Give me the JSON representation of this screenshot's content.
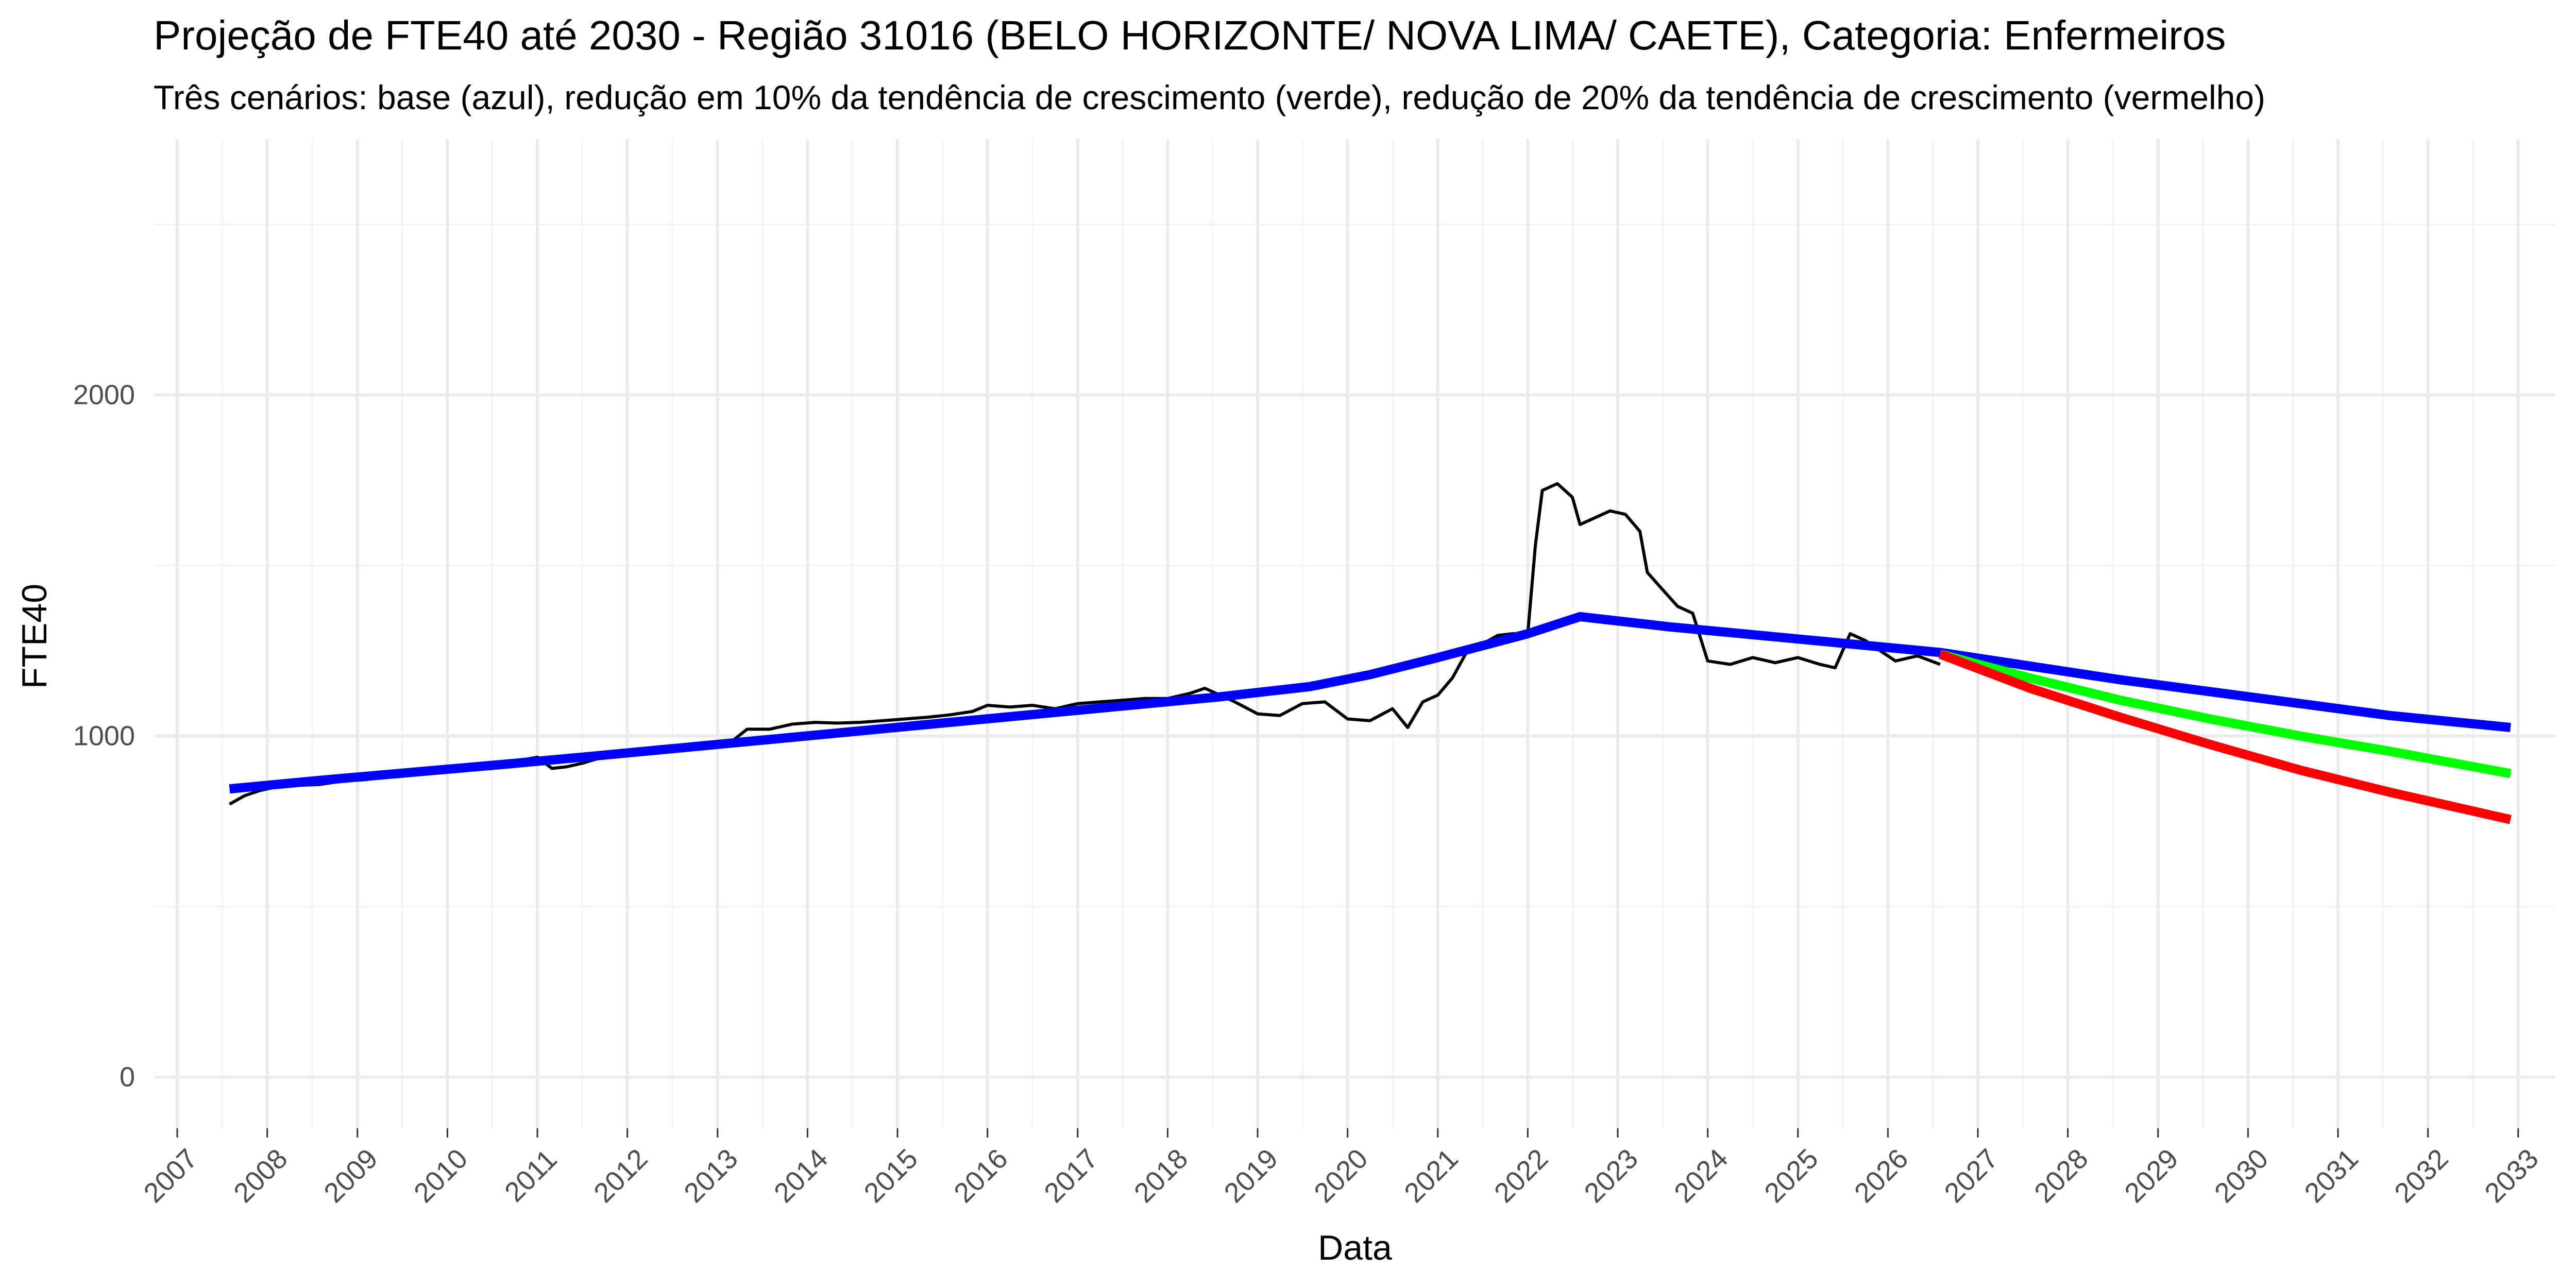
{
  "chart_data": {
    "type": "line",
    "title": "Projeção de FTE40 até 2030 - Região 31016 (BELO HORIZONTE/ NOVA LIMA/ CAETE), Categoria: Enfermeiros",
    "subtitle": "Três cenários: base (azul), redução em 10% da tendência de crescimento (verde), redução de 20% da tendência de crescimento (vermelho)",
    "xlabel": "Data",
    "ylabel": "FTE40",
    "x_type": "date",
    "xlim": [
      "2006-10-01",
      "2033-06-01"
    ],
    "ylim": [
      -150,
      2750
    ],
    "x_ticks": [
      "2007-01-01",
      "2008-01-01",
      "2009-01-01",
      "2010-01-01",
      "2011-01-01",
      "2012-01-01",
      "2013-01-01",
      "2014-01-01",
      "2015-01-01",
      "2016-01-01",
      "2017-01-01",
      "2018-01-01",
      "2019-01-01",
      "2020-01-01",
      "2021-01-01",
      "2022-01-01",
      "2023-01-01",
      "2024-01-01",
      "2025-01-01",
      "2026-01-01",
      "2027-01-01",
      "2028-01-01",
      "2029-01-01",
      "2030-01-01",
      "2031-01-01",
      "2032-01-01",
      "2033-01-01"
    ],
    "x_tick_labels": [
      "2007",
      "2008",
      "2009",
      "2010",
      "2011",
      "2012",
      "2013",
      "2014",
      "2015",
      "2016",
      "2017",
      "2018",
      "2019",
      "2020",
      "2021",
      "2022",
      "2023",
      "2024",
      "2025",
      "2026",
      "2027",
      "2028",
      "2029",
      "2030",
      "2031",
      "2032",
      "2033"
    ],
    "y_ticks": [
      0,
      1000,
      2000
    ],
    "y_tick_labels": [
      "0",
      "1000",
      "2000"
    ],
    "y_minor_ticks": [
      500,
      1500,
      2500
    ],
    "grid": true,
    "legend": "none",
    "series": [
      {
        "color": "#000000",
        "line_width": 6,
        "points": [
          [
            "2007-08-01",
            800
          ],
          [
            "2007-10-01",
            825
          ],
          [
            "2007-12-01",
            840
          ],
          [
            "2008-02-01",
            850
          ],
          [
            "2008-05-01",
            855
          ],
          [
            "2008-08-01",
            858
          ],
          [
            "2008-11-01",
            868
          ],
          [
            "2009-02-01",
            872
          ],
          [
            "2009-05-01",
            882
          ],
          [
            "2009-08-01",
            888
          ],
          [
            "2009-11-01",
            900
          ],
          [
            "2010-02-01",
            912
          ],
          [
            "2010-05-01",
            915
          ],
          [
            "2010-08-01",
            922
          ],
          [
            "2010-11-01",
            930
          ],
          [
            "2011-01-01",
            938
          ],
          [
            "2011-03-01",
            905
          ],
          [
            "2011-05-01",
            910
          ],
          [
            "2011-07-01",
            920
          ],
          [
            "2011-10-01",
            940
          ],
          [
            "2012-01-01",
            950
          ],
          [
            "2012-04-01",
            955
          ],
          [
            "2012-07-01",
            962
          ],
          [
            "2012-10-01",
            970
          ],
          [
            "2013-01-01",
            980
          ],
          [
            "2013-03-01",
            985
          ],
          [
            "2013-05-01",
            1020
          ],
          [
            "2013-08-01",
            1020
          ],
          [
            "2013-11-01",
            1035
          ],
          [
            "2014-02-01",
            1040
          ],
          [
            "2014-05-01",
            1038
          ],
          [
            "2014-08-01",
            1040
          ],
          [
            "2014-11-01",
            1045
          ],
          [
            "2015-02-01",
            1050
          ],
          [
            "2015-05-01",
            1055
          ],
          [
            "2015-08-01",
            1062
          ],
          [
            "2015-11-01",
            1072
          ],
          [
            "2016-01-01",
            1090
          ],
          [
            "2016-04-01",
            1085
          ],
          [
            "2016-07-01",
            1090
          ],
          [
            "2016-10-01",
            1080
          ],
          [
            "2017-01-01",
            1095
          ],
          [
            "2017-04-01",
            1100
          ],
          [
            "2017-07-01",
            1105
          ],
          [
            "2017-10-01",
            1110
          ],
          [
            "2018-01-01",
            1110
          ],
          [
            "2018-04-01",
            1125
          ],
          [
            "2018-06-01",
            1140
          ],
          [
            "2018-08-01",
            1120
          ],
          [
            "2018-10-01",
            1100
          ],
          [
            "2019-01-01",
            1065
          ],
          [
            "2019-04-01",
            1060
          ],
          [
            "2019-07-01",
            1095
          ],
          [
            "2019-10-01",
            1100
          ],
          [
            "2020-01-01",
            1050
          ],
          [
            "2020-04-01",
            1045
          ],
          [
            "2020-07-01",
            1080
          ],
          [
            "2020-09-01",
            1025
          ],
          [
            "2020-11-01",
            1100
          ],
          [
            "2021-01-01",
            1120
          ],
          [
            "2021-03-01",
            1170
          ],
          [
            "2021-05-01",
            1250
          ],
          [
            "2021-07-01",
            1270
          ],
          [
            "2021-09-01",
            1295
          ],
          [
            "2021-11-01",
            1300
          ],
          [
            "2022-01-01",
            1300
          ],
          [
            "2022-02-01",
            1560
          ],
          [
            "2022-03-01",
            1720
          ],
          [
            "2022-05-01",
            1740
          ],
          [
            "2022-07-01",
            1700
          ],
          [
            "2022-08-01",
            1620
          ],
          [
            "2022-10-01",
            1640
          ],
          [
            "2022-12-01",
            1660
          ],
          [
            "2023-02-01",
            1650
          ],
          [
            "2023-04-01",
            1600
          ],
          [
            "2023-05-01",
            1480
          ],
          [
            "2023-07-01",
            1430
          ],
          [
            "2023-09-01",
            1380
          ],
          [
            "2023-11-01",
            1360
          ],
          [
            "2024-01-01",
            1220
          ],
          [
            "2024-04-01",
            1210
          ],
          [
            "2024-07-01",
            1230
          ],
          [
            "2024-10-01",
            1215
          ],
          [
            "2025-01-01",
            1230
          ],
          [
            "2025-04-01",
            1210
          ],
          [
            "2025-06-01",
            1200
          ],
          [
            "2025-08-01",
            1300
          ],
          [
            "2025-10-01",
            1280
          ],
          [
            "2025-12-01",
            1250
          ],
          [
            "2026-02-01",
            1220
          ],
          [
            "2026-05-01",
            1235
          ],
          [
            "2026-08-01",
            1210
          ]
        ]
      },
      {
        "color": "#0000ff",
        "line_width": 18,
        "points": [
          [
            "2007-08-01",
            845
          ],
          [
            "2008-08-01",
            870
          ],
          [
            "2009-08-01",
            893
          ],
          [
            "2010-08-01",
            916
          ],
          [
            "2011-08-01",
            940
          ],
          [
            "2012-08-01",
            965
          ],
          [
            "2013-08-01",
            990
          ],
          [
            "2014-08-01",
            1015
          ],
          [
            "2015-08-01",
            1040
          ],
          [
            "2016-08-01",
            1065
          ],
          [
            "2017-08-01",
            1090
          ],
          [
            "2018-08-01",
            1115
          ],
          [
            "2019-08-01",
            1145
          ],
          [
            "2020-04-01",
            1180
          ],
          [
            "2021-01-01",
            1230
          ],
          [
            "2022-01-01",
            1300
          ],
          [
            "2022-08-01",
            1350
          ],
          [
            "2023-08-01",
            1320
          ],
          [
            "2024-08-01",
            1295
          ],
          [
            "2025-08-01",
            1270
          ],
          [
            "2026-08-01",
            1245
          ],
          [
            "2027-08-01",
            1205
          ],
          [
            "2028-08-01",
            1165
          ],
          [
            "2029-08-01",
            1130
          ],
          [
            "2030-08-01",
            1095
          ],
          [
            "2031-08-01",
            1060
          ],
          [
            "2032-12-01",
            1025
          ]
        ]
      },
      {
        "color": "#00ff00",
        "line_width": 18,
        "points": [
          [
            "2026-08-01",
            1240
          ],
          [
            "2027-08-01",
            1170
          ],
          [
            "2028-08-01",
            1105
          ],
          [
            "2029-08-01",
            1050
          ],
          [
            "2030-08-01",
            1000
          ],
          [
            "2031-08-01",
            955
          ],
          [
            "2032-12-01",
            890
          ]
        ]
      },
      {
        "color": "#ff0000",
        "line_width": 18,
        "points": [
          [
            "2026-08-01",
            1240
          ],
          [
            "2027-08-01",
            1140
          ],
          [
            "2028-08-01",
            1055
          ],
          [
            "2029-08-01",
            975
          ],
          [
            "2030-08-01",
            900
          ],
          [
            "2031-08-01",
            835
          ],
          [
            "2032-12-01",
            755
          ]
        ]
      }
    ]
  }
}
